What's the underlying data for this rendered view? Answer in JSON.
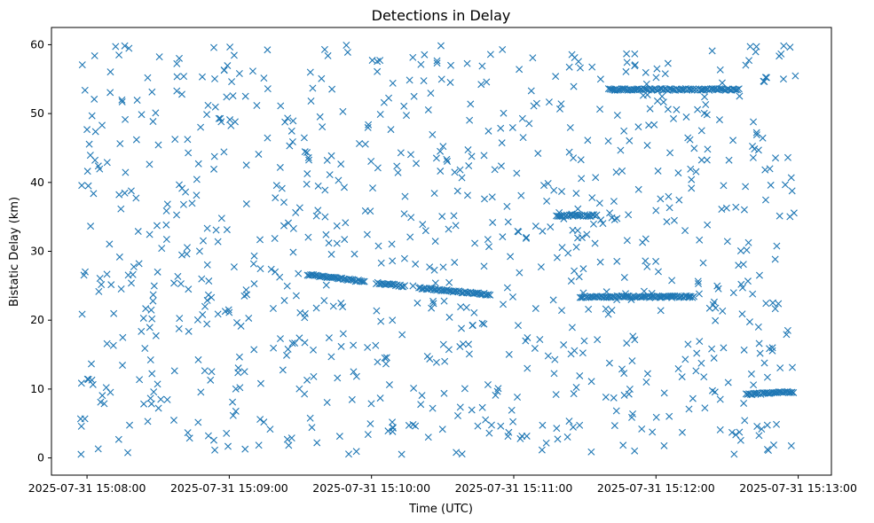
{
  "chart_data": {
    "type": "scatter",
    "title": "Detections in Delay",
    "xlabel": "Time (UTC)",
    "ylabel": "Bistatic Delay (km)",
    "x_axis_type": "datetime",
    "xlim": [
      "2025-07-31 15:07:45",
      "2025-07-31 15:13:14"
    ],
    "ylim": [
      -2.5,
      62.5
    ],
    "x_ticks": [
      "2025-07-31 15:08:00",
      "2025-07-31 15:09:00",
      "2025-07-31 15:10:00",
      "2025-07-31 15:11:00",
      "2025-07-31 15:12:00",
      "2025-07-31 15:13:00"
    ],
    "y_ticks": [
      0,
      10,
      20,
      30,
      40,
      50,
      60
    ],
    "marker": "x",
    "color": "#1f77b4",
    "grid": false,
    "tracks": [
      {
        "start": "2025-07-31 15:09:33",
        "end": "2025-07-31 15:09:57",
        "delay_start": 26.6,
        "delay_end": 25.6
      },
      {
        "start": "2025-07-31 15:10:02",
        "end": "2025-07-31 15:10:14",
        "delay_start": 25.4,
        "delay_end": 24.9
      },
      {
        "start": "2025-07-31 15:10:20",
        "end": "2025-07-31 15:10:50",
        "delay_start": 24.7,
        "delay_end": 23.7
      },
      {
        "start": "2025-07-31 15:11:18",
        "end": "2025-07-31 15:11:35",
        "delay_start": 35.2,
        "delay_end": 35.2
      },
      {
        "start": "2025-07-31 15:11:28",
        "end": "2025-07-31 15:12:16",
        "delay_start": 23.4,
        "delay_end": 23.4
      },
      {
        "start": "2025-07-31 15:11:40",
        "end": "2025-07-31 15:12:35",
        "delay_start": 53.5,
        "delay_end": 53.5
      },
      {
        "start": "2025-07-31 15:12:38",
        "end": "2025-07-31 15:12:58",
        "delay_start": 9.2,
        "delay_end": 9.6
      }
    ],
    "scattered_detections_approx": 900,
    "scattered_delay_range": [
      0.5,
      60
    ]
  }
}
